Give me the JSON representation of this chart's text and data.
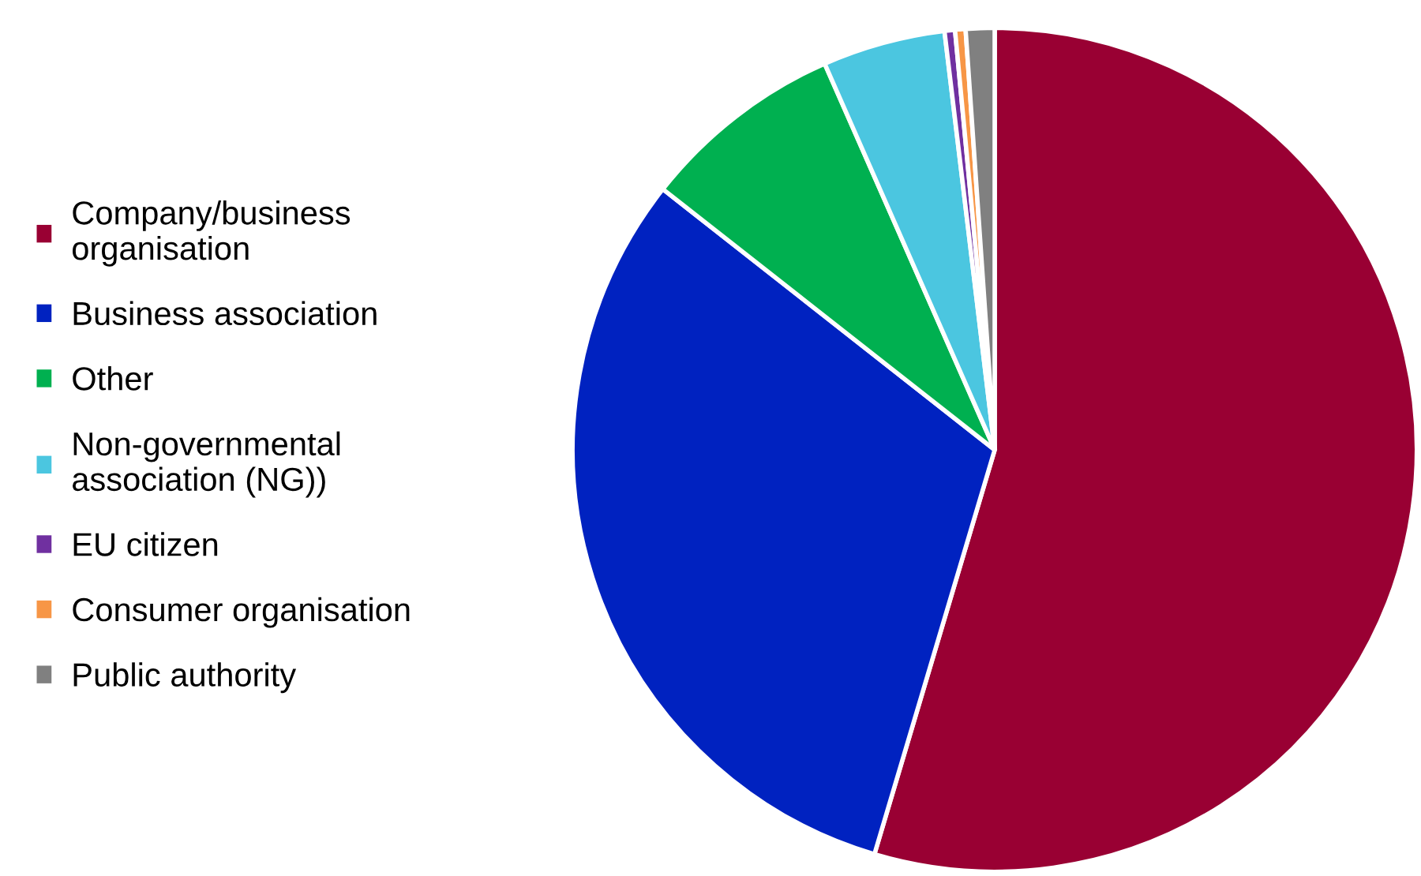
{
  "chart_data": {
    "type": "pie",
    "categories": [
      "Company/business\norganisation",
      "Business association",
      "Other",
      "Non-governmental\nassociation (NG))",
      "EU citizen",
      "Consumer organisation",
      "Public authority"
    ],
    "values": [
      54.6,
      31.0,
      7.8,
      4.7,
      0.4,
      0.4,
      1.1
    ],
    "colors": [
      "#990033",
      "#0022c0",
      "#00b050",
      "#4bc6e0",
      "#7030a0",
      "#f79646",
      "#808080"
    ],
    "legend": "left"
  }
}
